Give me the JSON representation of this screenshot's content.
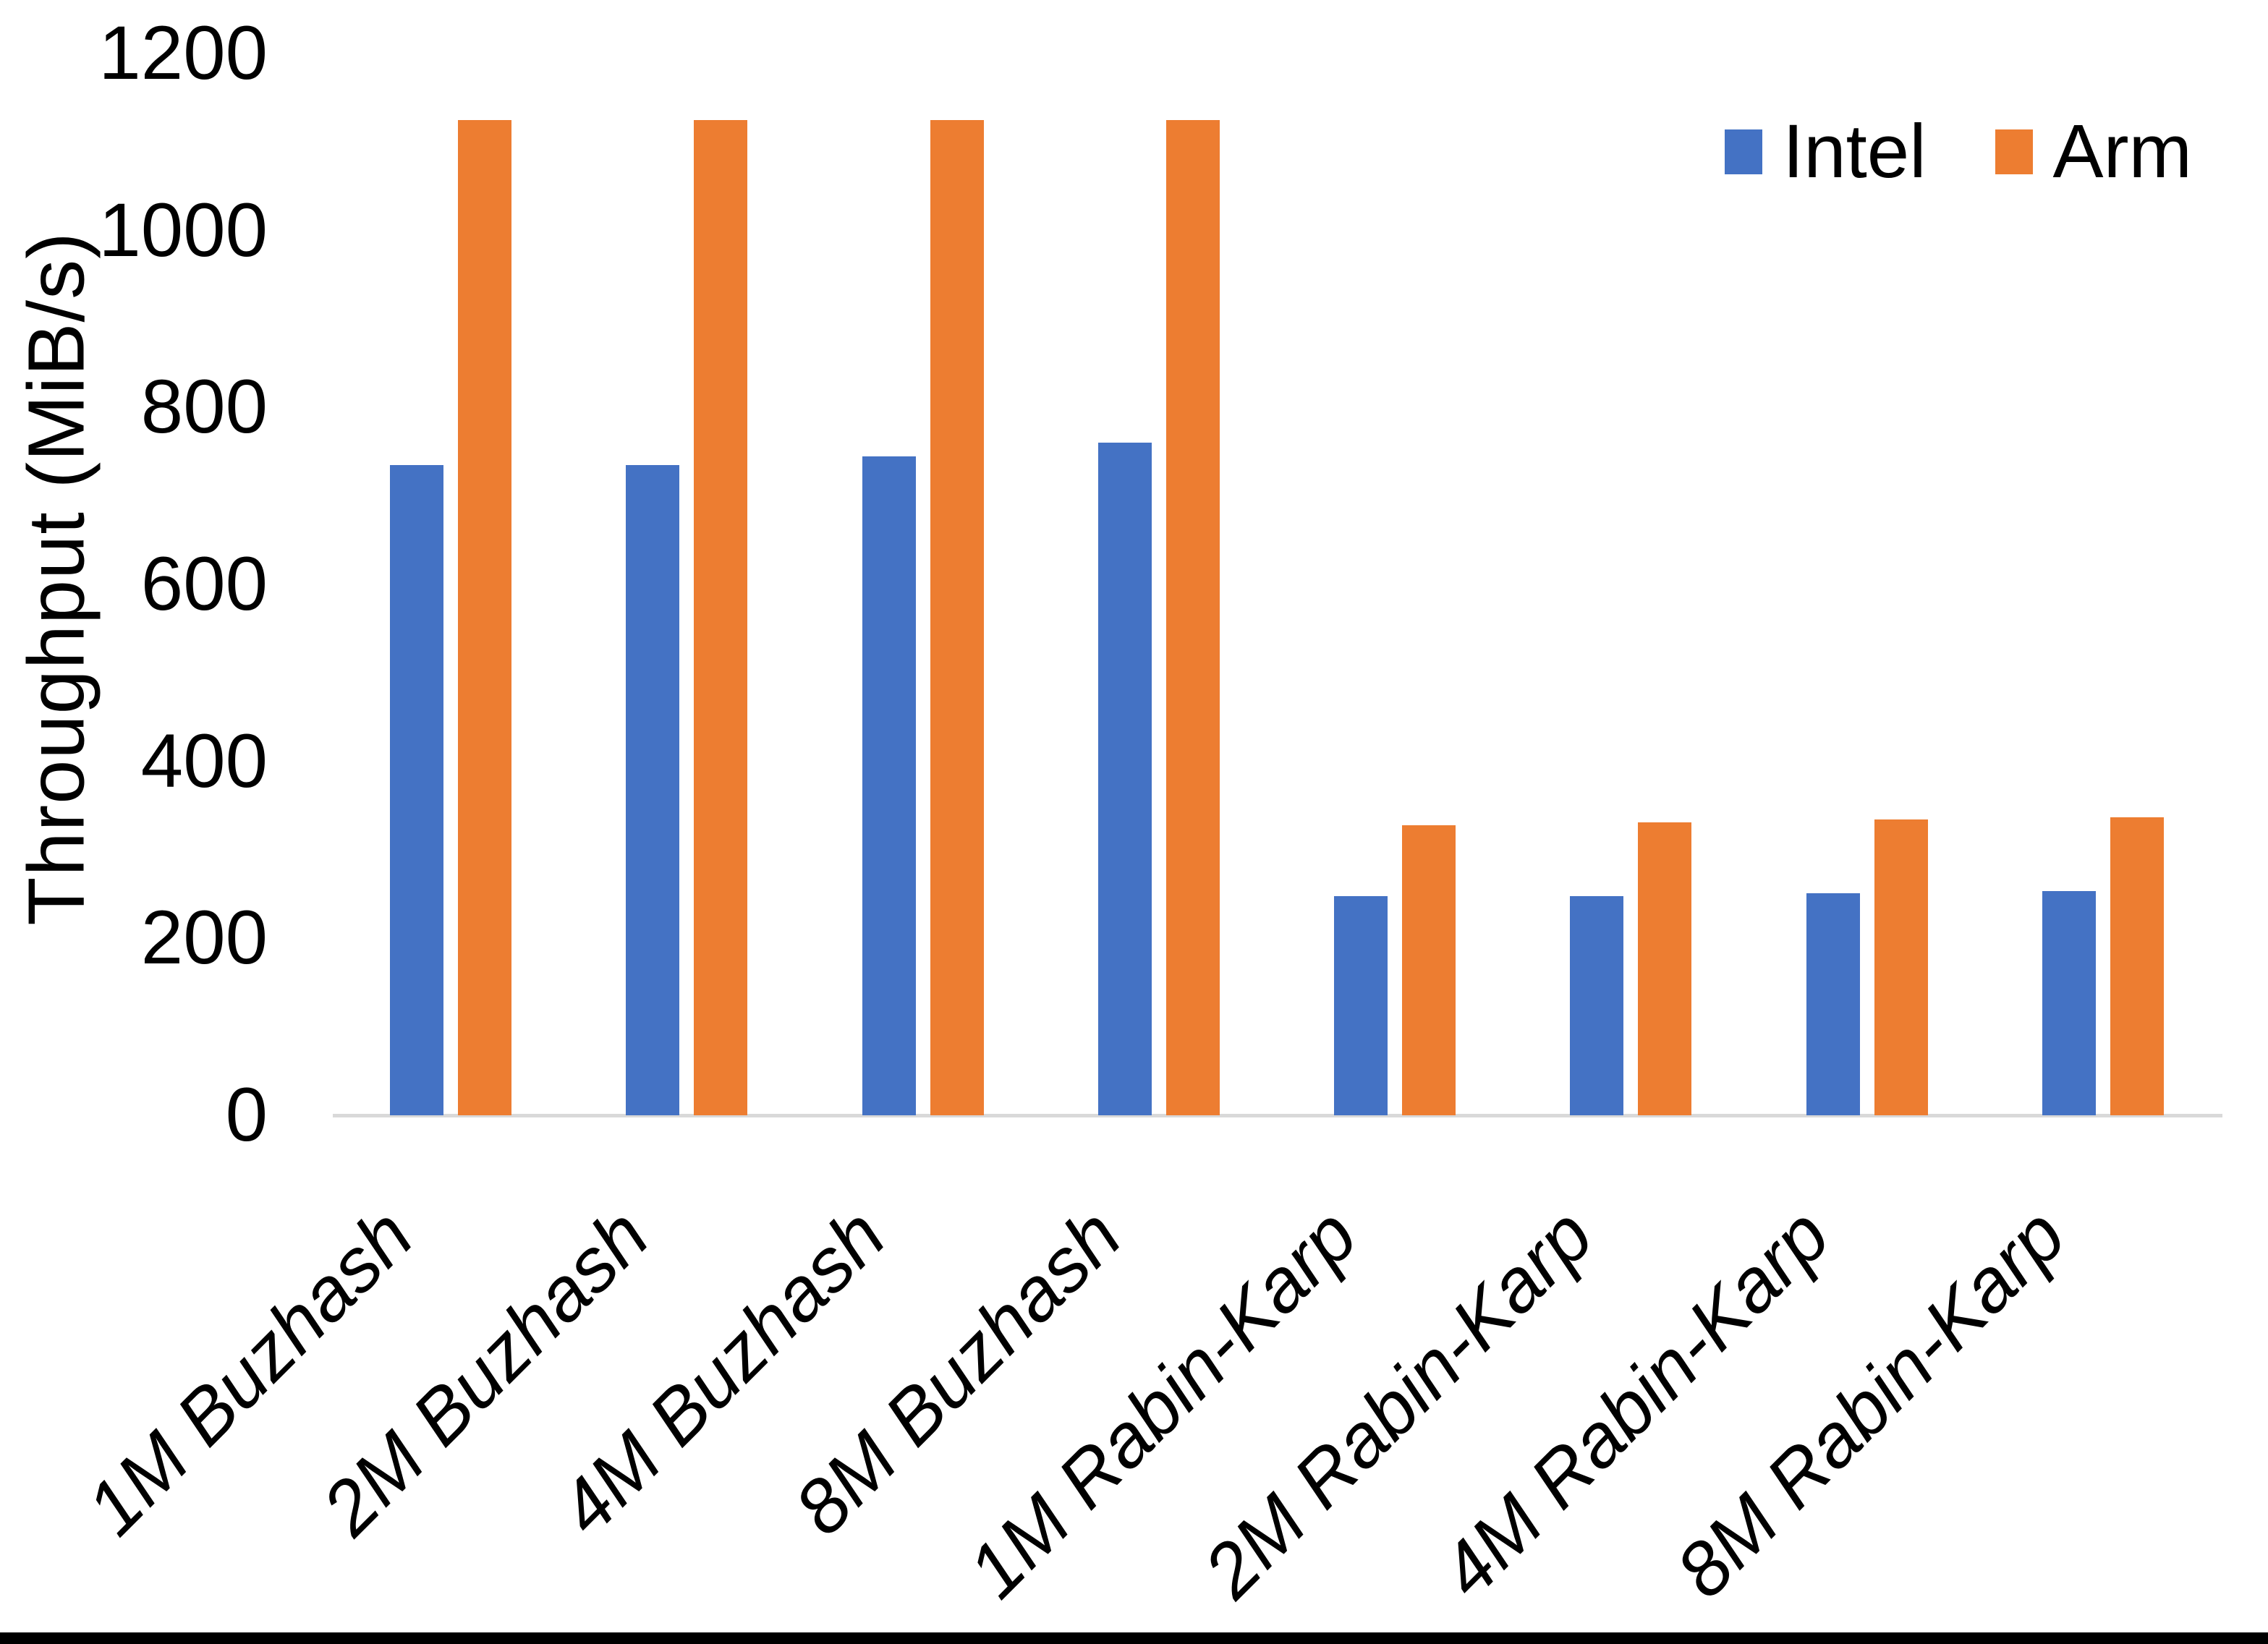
{
  "page": {
    "background": "#ffffff",
    "bottom_bar_color": "#000000"
  },
  "chart_data": {
    "type": "bar",
    "title": "",
    "ylabel": "Throughput (MiB/s)",
    "xlabel": "",
    "categories": [
      "1M Buzhash",
      "2M Buzhash",
      "4M Buzhash",
      "8M Buzhash",
      "1M Rabin-Karp",
      "2M Rabin-Karp",
      "4M Rabin-Karp",
      "8M Rabin-Karp"
    ],
    "series": [
      {
        "name": "Intel",
        "color": "#4472C4",
        "values": [
          735,
          735,
          745,
          760,
          248,
          248,
          251,
          253
        ]
      },
      {
        "name": "Arm",
        "color": "#ED7D31",
        "values": [
          1125,
          1125,
          1125,
          1125,
          328,
          331,
          334,
          337
        ]
      }
    ],
    "ylim": [
      0,
      1200
    ],
    "yticks": [
      0,
      200,
      400,
      600,
      800,
      1000,
      1200
    ],
    "grid": false,
    "legend_position": "top-right",
    "axis_line_color": "#D9D9D9",
    "tick_label_color": "#000000"
  }
}
